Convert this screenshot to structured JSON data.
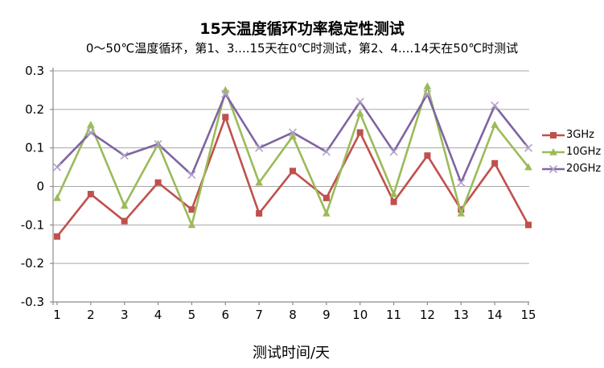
{
  "chart_data": {
    "type": "line",
    "title": "15天温度循环功率稳定性测试",
    "subtitle": "0～50℃温度循环，第1、3....15天在0℃时测试，第2、4....14天在50℃时测试",
    "xlabel": "测试时间/天",
    "x": [
      1,
      2,
      3,
      4,
      5,
      6,
      7,
      8,
      9,
      10,
      11,
      12,
      13,
      14,
      15
    ],
    "ylim": [
      -0.3,
      0.3
    ],
    "ytick_step": 0.1,
    "ytick_labels": [
      "0.3",
      "0.2",
      "0.1",
      "0",
      "-0.1",
      "-0.2",
      "-0.3"
    ],
    "grid": true,
    "legend_position": "right",
    "series": [
      {
        "name": "3GHz",
        "color": "#C0504D",
        "marker": "square",
        "marker_color": "#C0504D",
        "values": [
          -0.13,
          -0.02,
          -0.09,
          0.01,
          -0.06,
          0.18,
          -0.07,
          0.04,
          -0.03,
          0.14,
          -0.04,
          0.08,
          -0.06,
          0.06,
          -0.1
        ]
      },
      {
        "name": "10GHz",
        "color": "#9BBB59",
        "marker": "triangle",
        "marker_color": "#9BBB59",
        "values": [
          -0.03,
          0.16,
          -0.05,
          0.11,
          -0.1,
          0.25,
          0.01,
          0.13,
          -0.07,
          0.19,
          -0.02,
          0.26,
          -0.07,
          0.16,
          0.05
        ]
      },
      {
        "name": "20GHz",
        "color": "#8064A2",
        "marker": "x",
        "marker_color": "#B3A2C7",
        "values": [
          0.05,
          0.14,
          0.08,
          0.11,
          0.03,
          0.24,
          0.1,
          0.14,
          0.09,
          0.22,
          0.09,
          0.24,
          0.01,
          0.21,
          0.1
        ]
      }
    ],
    "grid_color": "#A6A6A6",
    "axis_color": "#8C8C8C",
    "text_color": "#000000"
  }
}
